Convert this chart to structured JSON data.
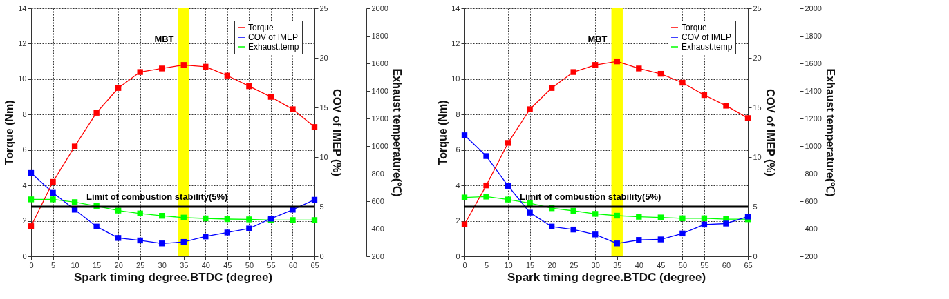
{
  "chart_data": [
    {
      "type": "line",
      "xlabel": "Spark timing degree.BTDC (degree)",
      "ylabel": "Torque (Nm)",
      "y2label": "COV of IMEP (%)",
      "y3label": "Exhaust temperature(℃)",
      "x": [
        0,
        5,
        10,
        15,
        20,
        25,
        30,
        35,
        40,
        45,
        50,
        55,
        60,
        65
      ],
      "series": [
        {
          "name": "Torque",
          "color": "#ff0000",
          "values": [
            1.7,
            4.2,
            6.2,
            8.1,
            9.5,
            10.4,
            10.6,
            10.8,
            10.7,
            10.2,
            9.6,
            9.0,
            8.3,
            7.3
          ]
        },
        {
          "name": "COV of IMEP",
          "color": "#0000ff",
          "axis": "y2",
          "values": [
            8.4,
            6.4,
            4.7,
            3.0,
            1.85,
            1.6,
            1.3,
            1.45,
            2.0,
            2.4,
            2.8,
            3.8,
            4.7,
            5.7
          ]
        },
        {
          "name": "Exhaust.temp",
          "color": "#00ff00",
          "axis": "y3",
          "values": [
            613,
            613,
            593,
            564,
            532,
            511,
            494,
            481,
            475,
            470,
            468,
            463,
            463,
            463
          ]
        }
      ],
      "xlim": [
        0,
        65
      ],
      "xticks": [
        0,
        5,
        10,
        15,
        20,
        25,
        30,
        35,
        40,
        45,
        50,
        55,
        60,
        65
      ],
      "ylim": [
        0,
        14
      ],
      "yticks": [
        0,
        2,
        4,
        6,
        8,
        10,
        12,
        14
      ],
      "y2lim": [
        0,
        25
      ],
      "y2ticks": [
        0,
        5,
        10,
        15,
        20,
        25
      ],
      "y3lim": [
        200,
        2000
      ],
      "y3ticks": [
        200,
        400,
        600,
        800,
        1000,
        1200,
        1400,
        1600,
        1800,
        2000
      ],
      "grid": true,
      "legend": "top right",
      "marker": "square",
      "ref_lines": [
        {
          "axis": "y2",
          "value": 5,
          "label": "Limit of combustion stability(5%)",
          "color": "#000000"
        }
      ],
      "bands": [
        {
          "axis": "x",
          "from": 33.7,
          "to": 36.3,
          "label": "MBT",
          "color": "#ffff00"
        }
      ]
    },
    {
      "type": "line",
      "xlabel": "Spark timing degree.BTDC (degree)",
      "ylabel": "Torque (Nm)",
      "y2label": "COV of IMEP (%)",
      "y3label": "Exhaust temperature(℃)",
      "x": [
        0,
        5,
        10,
        15,
        20,
        25,
        30,
        35,
        40,
        45,
        50,
        55,
        60,
        65
      ],
      "series": [
        {
          "name": "Torque",
          "color": "#ff0000",
          "values": [
            1.8,
            4.0,
            6.4,
            8.3,
            9.5,
            10.4,
            10.8,
            11.0,
            10.6,
            10.3,
            9.8,
            9.1,
            8.5,
            7.8
          ]
        },
        {
          "name": "COV of IMEP",
          "color": "#0000ff",
          "axis": "y2",
          "values": [
            12.2,
            10.1,
            7.1,
            4.4,
            3.0,
            2.7,
            2.2,
            1.3,
            1.65,
            1.7,
            2.3,
            3.2,
            3.3,
            4.0
          ]
        },
        {
          "name": "Exhaust.temp",
          "color": "#00ff00",
          "axis": "y3",
          "values": [
            627,
            633,
            612,
            586,
            549,
            530,
            508,
            495,
            487,
            482,
            476,
            476,
            469,
            469
          ]
        }
      ],
      "xlim": [
        0,
        65
      ],
      "xticks": [
        0,
        5,
        10,
        15,
        20,
        25,
        30,
        35,
        40,
        45,
        50,
        55,
        60,
        65
      ],
      "ylim": [
        0,
        14
      ],
      "yticks": [
        0,
        2,
        4,
        6,
        8,
        10,
        12,
        14
      ],
      "y2lim": [
        0,
        25
      ],
      "y2ticks": [
        0,
        5,
        10,
        15,
        20,
        25
      ],
      "y3lim": [
        200,
        2000
      ],
      "y3ticks": [
        200,
        400,
        600,
        800,
        1000,
        1200,
        1400,
        1600,
        1800,
        2000
      ],
      "grid": true,
      "legend": "top right",
      "marker": "square",
      "ref_lines": [
        {
          "axis": "y2",
          "value": 5,
          "label": "Limit of combustion stability(5%)",
          "color": "#000000"
        }
      ],
      "bands": [
        {
          "axis": "x",
          "from": 33.7,
          "to": 36.3,
          "label": "MBT",
          "color": "#ffff00"
        }
      ]
    }
  ]
}
